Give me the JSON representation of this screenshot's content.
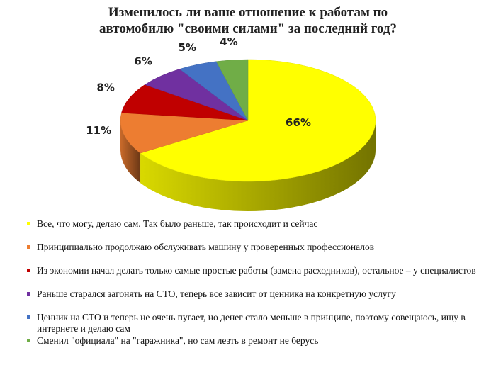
{
  "chart_data": {
    "type": "pie",
    "title": "Изменилось ли ваше отношение к работам по автомобилю \"своими силами\" за последний год?",
    "categories": [
      "Все, что могу, делаю сам. Так было раньше, так происходит и сейчас",
      "Принципиально продолжаю обслуживать машину у проверенных профессионалов",
      "Из экономии начал делать только самые простые работы (замена расходников), остальное – у специалистов",
      "Раньше старался загонять на СТО, теперь все зависит от ценника на конкретную услугу",
      "Ценник на СТО и теперь не очень пугает, но денег стало меньше в принципе, поэтому совещаюсь, ищу в интернете и делаю сам",
      "Сменил \"официала\" на \"гаражника\", но сам лезть в ремонт не берусь"
    ],
    "values": [
      66,
      11,
      8,
      6,
      5,
      4
    ],
    "value_labels": [
      "66%",
      "11%",
      "8%",
      "6%",
      "5%",
      "4%"
    ],
    "colors": [
      "#ffff00",
      "#ed7d31",
      "#c00000",
      "#7030a0",
      "#4472c4",
      "#70ad47"
    ]
  }
}
